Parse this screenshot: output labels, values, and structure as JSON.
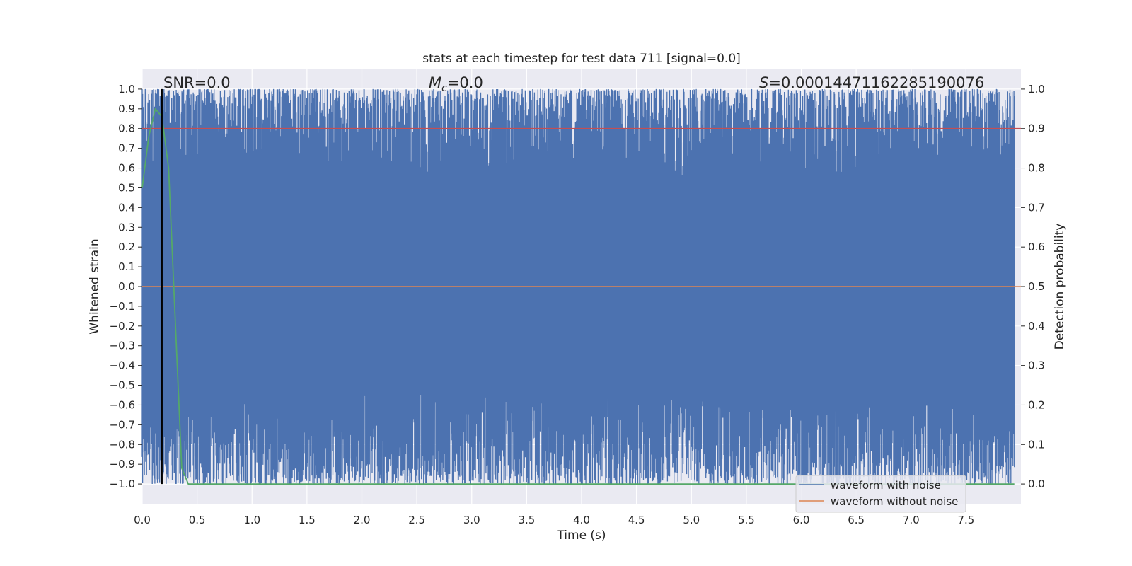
{
  "chart_data": {
    "type": "line",
    "title": "stats at each timestep for test data 711 [signal=0.0]",
    "xlabel": "Time (s)",
    "ylabel": "Whitened strain",
    "y2label": "Detection probability",
    "xlim": [
      0.0,
      8.0
    ],
    "ylim": [
      -1.1,
      1.1
    ],
    "y2lim": [
      -0.05,
      1.05
    ],
    "x_ticks": [
      "0.0",
      "0.5",
      "1.0",
      "1.5",
      "2.0",
      "2.5",
      "3.0",
      "3.5",
      "4.0",
      "4.5",
      "5.0",
      "5.5",
      "6.0",
      "6.5",
      "7.0",
      "7.5"
    ],
    "y_ticks": [
      "1.0",
      "0.9",
      "0.8",
      "0.7",
      "0.6",
      "0.5",
      "0.4",
      "0.3",
      "0.2",
      "0.1",
      "0.0",
      "−0.1",
      "−0.2",
      "−0.3",
      "−0.4",
      "−0.5",
      "−0.6",
      "−0.7",
      "−0.8",
      "−0.9",
      "−1.0"
    ],
    "y2_ticks": [
      "1.0",
      "0.9",
      "0.8",
      "0.7",
      "0.6",
      "0.5",
      "0.4",
      "0.3",
      "0.2",
      "0.1",
      "0.0"
    ],
    "grid": true,
    "legend_position": "bottom-right",
    "annotations": {
      "snr": "SNR=0.0",
      "mc_symbol": "M",
      "mc_sub": "c",
      "mc_value": "=0.0",
      "s_symbol": "S",
      "s_value": "=0.00014471162285190076"
    },
    "series": [
      {
        "name": "waveform with noise",
        "color": "#4c72b0",
        "description_values": "dense noise filling roughly -1.0 to 1.0 over 0 to 8 s"
      },
      {
        "name": "waveform without noise",
        "color": "#dd8452",
        "x": [
          0.0,
          8.0
        ],
        "y": [
          0.0,
          0.0
        ]
      },
      {
        "color": "#55a868",
        "axis": "right",
        "x": [
          0.0,
          0.06,
          0.12,
          0.18,
          0.24,
          0.3,
          0.36,
          0.42,
          1.0,
          2.0,
          3.0,
          4.0,
          5.0,
          6.0,
          7.0,
          7.94
        ],
        "y": [
          0.75,
          0.88,
          0.95,
          0.93,
          0.8,
          0.42,
          0.04,
          0.0,
          0.0,
          0.0,
          0.0,
          0.0,
          0.0,
          0.0,
          0.0,
          0.0
        ]
      }
    ],
    "threshold_right": {
      "y": 0.9,
      "color": "#c44e52"
    },
    "vertical_line": {
      "x": 0.18,
      "color": "#000000"
    }
  }
}
